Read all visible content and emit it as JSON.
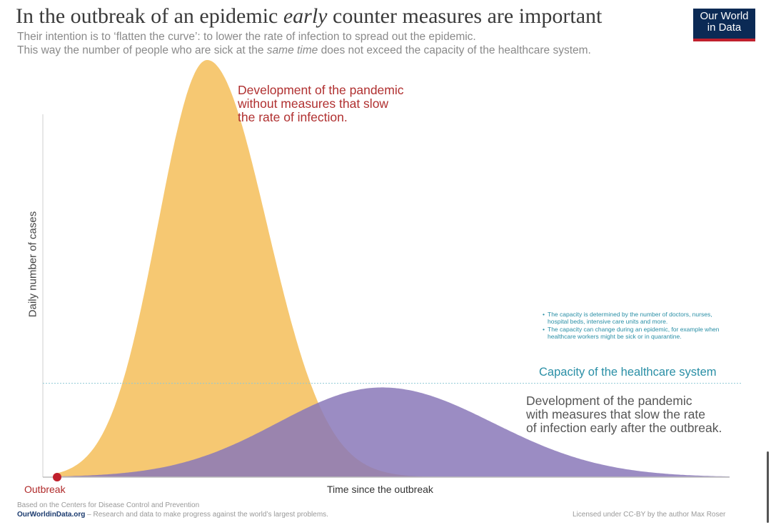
{
  "title_part1": "In the outbreak of an epidemic ",
  "title_italic": "early",
  "title_part2": " counter measures are important",
  "subtitle1": "Their intention is to ‘flatten the curve’: to lower the rate of infection to spread out the epidemic.",
  "subtitle2_a": "This way the number of people who are sick at the ",
  "subtitle2_italic": "same time",
  "subtitle2_b": " does not exceed the capacity of the healthcare system.",
  "logo": {
    "line1": "Our World",
    "line2": "in Data"
  },
  "annotations": {
    "no_measures": [
      "Development of the pandemic",
      "without measures that slow",
      "the rate of infection."
    ],
    "with_measures": [
      "Development of the pandemic",
      "with measures that slow the rate",
      "of infection early after the outbreak."
    ],
    "capacity_label": "Capacity of the healthcare system",
    "capacity_notes": [
      "The capacity is determined by the number of doctors, nurses, hospital beds, intensive care units and more.",
      "The capacity can change during an epidemic, for example when healthcare workers might be sick or in quarantine."
    ]
  },
  "footer": {
    "source": "Based on the Centers for Disease Control and Prevention",
    "site": "OurWorldinData.org",
    "tagline": " – Research and data to make progress against the world’s largest problems.",
    "license": "Licensed under CC-BY by the author Max Roser"
  },
  "colors": {
    "no_measures": "#f6c56a",
    "with_measures": "#8a78b8",
    "capacity_line": "#8ec9d6",
    "outbreak_dot": "#c0202d"
  },
  "chart_data": {
    "type": "area",
    "xlabel": "Time since the outbreak",
    "ylabel": "Daily number of cases",
    "x_origin_label": "Outbreak",
    "xlim": [
      0,
      100
    ],
    "ylim": [
      0,
      100
    ],
    "capacity": 22.5,
    "series": [
      {
        "name": "without measures",
        "peak_x": 22.3,
        "peak_y": 100,
        "spread_left": 7.3,
        "spread_right": 8.9
      },
      {
        "name": "with measures",
        "peak_x": 48.3,
        "peak_y": 21.5,
        "spread_left": 15.5,
        "spread_right": 16.5
      }
    ]
  }
}
